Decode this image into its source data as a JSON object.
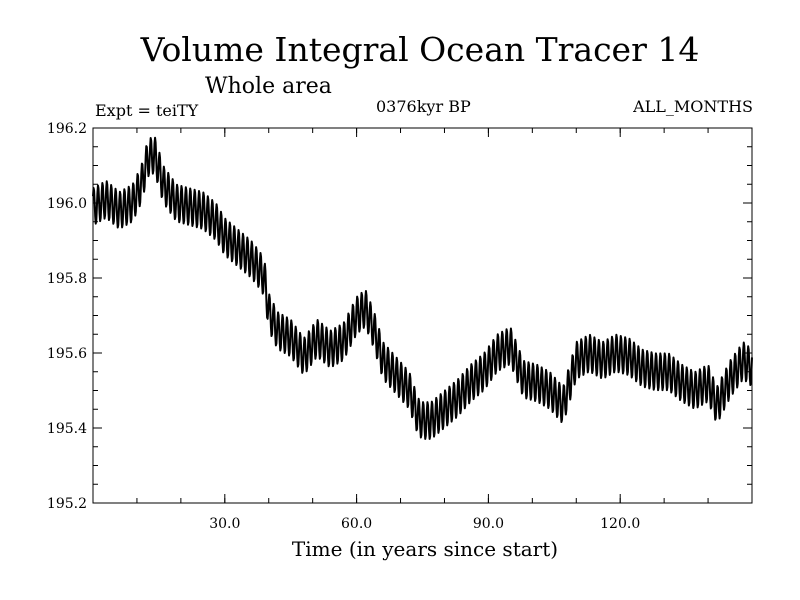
{
  "header": {
    "title": "Volume Integral Ocean Tracer 14",
    "subtitle": "Whole area",
    "experiment": "Expt = teiTY",
    "period": "0376kyr BP",
    "months": "ALL_MONTHS"
  },
  "chart_data": {
    "type": "line",
    "title": "Volume Integral Ocean Tracer 14",
    "xlabel": "Time (in years since start)",
    "ylabel": "",
    "xlim": [
      0,
      150
    ],
    "ylim": [
      195.2,
      196.2
    ],
    "xticks": [
      30,
      60,
      90,
      120
    ],
    "xtick_labels": [
      "30.0",
      "60.0",
      "90.0",
      "120.0"
    ],
    "yticks": [
      195.2,
      195.4,
      195.6,
      195.8,
      196.0,
      196.2
    ],
    "ytick_labels": [
      "195.2",
      "195.4",
      "195.6",
      "195.8",
      "196.0",
      "196.2"
    ],
    "grid": false,
    "series_color": "#000000",
    "series": [
      {
        "name": "",
        "seasonal_amplitude": 0.05,
        "x": [
          0,
          3,
          6,
          9,
          11,
          12.5,
          14,
          16,
          19,
          22,
          25,
          28,
          30,
          33,
          36,
          38,
          39,
          40,
          42,
          45,
          48,
          51,
          54,
          57,
          60,
          62,
          64,
          66,
          69,
          72,
          74,
          75,
          77,
          80,
          83,
          86,
          89,
          92,
          95,
          98,
          101,
          104,
          107,
          110,
          113,
          116,
          119,
          122,
          125,
          128,
          131,
          134,
          137,
          140,
          142,
          145,
          148,
          150
        ],
        "y": [
          195.99,
          196.01,
          195.98,
          196.0,
          196.05,
          196.12,
          196.13,
          196.05,
          196.0,
          195.99,
          195.98,
          195.95,
          195.91,
          195.88,
          195.85,
          195.82,
          195.8,
          195.71,
          195.66,
          195.64,
          195.59,
          195.64,
          195.61,
          195.63,
          195.7,
          195.72,
          195.66,
          195.58,
          195.54,
          195.5,
          195.43,
          195.42,
          195.42,
          195.45,
          195.48,
          195.52,
          195.55,
          195.6,
          195.62,
          195.53,
          195.52,
          195.5,
          195.46,
          195.58,
          195.6,
          195.58,
          195.6,
          195.59,
          195.56,
          195.55,
          195.55,
          195.52,
          195.5,
          195.52,
          195.46,
          195.53,
          195.58,
          195.56
        ]
      }
    ]
  }
}
